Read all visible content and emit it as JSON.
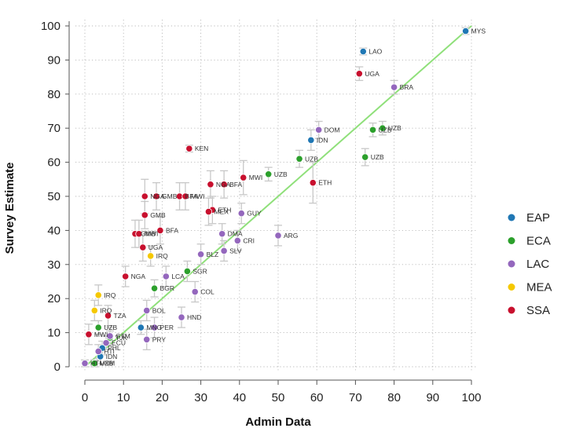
{
  "chart_data": {
    "type": "scatter",
    "xlabel": "Admin Data",
    "ylabel": "Survey Estimate",
    "xlim": [
      0,
      100
    ],
    "ylim": [
      0,
      100
    ],
    "xticks": [
      0,
      10,
      20,
      30,
      40,
      50,
      60,
      70,
      80,
      90,
      100
    ],
    "yticks": [
      0,
      10,
      20,
      30,
      40,
      50,
      60,
      70,
      80,
      90,
      100
    ],
    "grid": true,
    "legend_position": "right",
    "reference_line": {
      "from": [
        0,
        0
      ],
      "to": [
        100,
        100
      ],
      "color": "#8fe07a"
    },
    "error_bar_color": "#c8c8c8",
    "series": [
      {
        "name": "EAP",
        "color": "#1f77b4",
        "points": [
          {
            "x": 72,
            "y": 92.5,
            "label": "LAO",
            "err": 1
          },
          {
            "x": 98.5,
            "y": 98.5,
            "label": "MYS",
            "err": 1
          },
          {
            "x": 58.5,
            "y": 66.5,
            "label": "IDN",
            "err": 3
          },
          {
            "x": 14.5,
            "y": 11.5,
            "label": "MNG",
            "err": 2
          },
          {
            "x": 4.5,
            "y": 5.5,
            "label": "PHL",
            "err": 2
          },
          {
            "x": 4,
            "y": 3,
            "label": "IDN",
            "err": 2
          },
          {
            "x": 2.5,
            "y": 1,
            "label": "VNM",
            "err": 1
          }
        ]
      },
      {
        "name": "ECA",
        "color": "#2ca02c",
        "points": [
          {
            "x": 47.5,
            "y": 56.5,
            "label": "UZB",
            "err": 2
          },
          {
            "x": 55.5,
            "y": 61,
            "label": "UZB",
            "err": 2.5
          },
          {
            "x": 74.5,
            "y": 69.5,
            "label": "UZB",
            "err": 2
          },
          {
            "x": 77,
            "y": 70,
            "label": "UZB",
            "err": 2
          },
          {
            "x": 72.5,
            "y": 61.5,
            "label": "UZB",
            "err": 2.5
          },
          {
            "x": 26.5,
            "y": 28,
            "label": "SGR",
            "err": 3
          },
          {
            "x": 18,
            "y": 23,
            "label": "BGR",
            "err": 2.5
          },
          {
            "x": 3.5,
            "y": 11.5,
            "label": "UZB",
            "err": 2
          },
          {
            "x": 6.5,
            "y": 8.5,
            "label": "TJK",
            "err": 2
          },
          {
            "x": 2.5,
            "y": 1,
            "label": "UZB",
            "err": 1
          }
        ]
      },
      {
        "name": "LAC",
        "color": "#9467bd",
        "points": [
          {
            "x": 80,
            "y": 82,
            "label": "BRA",
            "err": 2
          },
          {
            "x": 60.5,
            "y": 69.5,
            "label": "DOM",
            "err": 2.5
          },
          {
            "x": 40.5,
            "y": 45,
            "label": "GUY",
            "err": 3
          },
          {
            "x": 50,
            "y": 38.5,
            "label": "ARG",
            "err": 3
          },
          {
            "x": 35.5,
            "y": 39,
            "label": "DMA",
            "err": 3
          },
          {
            "x": 39.5,
            "y": 37,
            "label": "CRI",
            "err": 3
          },
          {
            "x": 36,
            "y": 34,
            "label": "SLV",
            "err": 3
          },
          {
            "x": 30,
            "y": 33,
            "label": "BLZ",
            "err": 3
          },
          {
            "x": 21,
            "y": 26.5,
            "label": "LCA",
            "err": 3
          },
          {
            "x": 28.5,
            "y": 22,
            "label": "COL",
            "err": 3
          },
          {
            "x": 25,
            "y": 14.5,
            "label": "HND",
            "err": 3
          },
          {
            "x": 16,
            "y": 16.5,
            "label": "BOL",
            "err": 3
          },
          {
            "x": 18,
            "y": 11.5,
            "label": "PER",
            "err": 3
          },
          {
            "x": 16,
            "y": 8,
            "label": "PRY",
            "err": 3
          },
          {
            "x": 6.5,
            "y": 9,
            "label": "GTM",
            "err": 2.5
          },
          {
            "x": 5.5,
            "y": 7,
            "label": "ECU",
            "err": 2
          },
          {
            "x": 3.5,
            "y": 4.5,
            "label": "HTI",
            "err": 2
          },
          {
            "x": 0,
            "y": 1,
            "label": "HTI",
            "err": 1
          }
        ]
      },
      {
        "name": "MEA",
        "color": "#f5c800",
        "points": [
          {
            "x": 17,
            "y": 32.5,
            "label": "IRQ",
            "err": 3
          },
          {
            "x": 3.5,
            "y": 21,
            "label": "IRQ",
            "err": 3
          },
          {
            "x": 2.5,
            "y": 16.5,
            "label": "IRQ",
            "err": 3
          }
        ]
      },
      {
        "name": "SSA",
        "color": "#c8102e",
        "points": [
          {
            "x": 71,
            "y": 86,
            "label": "UGA",
            "err": 2
          },
          {
            "x": 27,
            "y": 64,
            "label": "KEN",
            "err": 1
          },
          {
            "x": 59,
            "y": 54,
            "label": "ETH",
            "err": 6
          },
          {
            "x": 41,
            "y": 55.5,
            "label": "MWI",
            "err": 5
          },
          {
            "x": 36,
            "y": 53.5,
            "label": "BFA",
            "err": 4
          },
          {
            "x": 32.5,
            "y": 53.5,
            "label": "NGA",
            "err": 4
          },
          {
            "x": 24.5,
            "y": 50,
            "label": "BFA",
            "err": 4
          },
          {
            "x": 26,
            "y": 50,
            "label": "MWI",
            "err": 4
          },
          {
            "x": 15.5,
            "y": 50,
            "label": "NGA",
            "err": 5
          },
          {
            "x": 18.5,
            "y": 50,
            "label": "GMB",
            "err": 4
          },
          {
            "x": 33,
            "y": 46,
            "label": "ETH",
            "err": 4
          },
          {
            "x": 32,
            "y": 45.5,
            "label": "MEX",
            "err": 4
          },
          {
            "x": 15.5,
            "y": 44.5,
            "label": "GMB",
            "err": 4
          },
          {
            "x": 13,
            "y": 39,
            "label": "GMB",
            "err": 4
          },
          {
            "x": 14,
            "y": 39,
            "label": "MWI",
            "err": 4
          },
          {
            "x": 19.5,
            "y": 40,
            "label": "BFA",
            "err": 4
          },
          {
            "x": 15,
            "y": 35,
            "label": "UGA",
            "err": 4
          },
          {
            "x": 10.5,
            "y": 26.5,
            "label": "NGA",
            "err": 3
          },
          {
            "x": 6,
            "y": 15,
            "label": "TZA",
            "err": 3
          },
          {
            "x": 1,
            "y": 9.5,
            "label": "MWI",
            "err": 3
          }
        ]
      }
    ]
  }
}
